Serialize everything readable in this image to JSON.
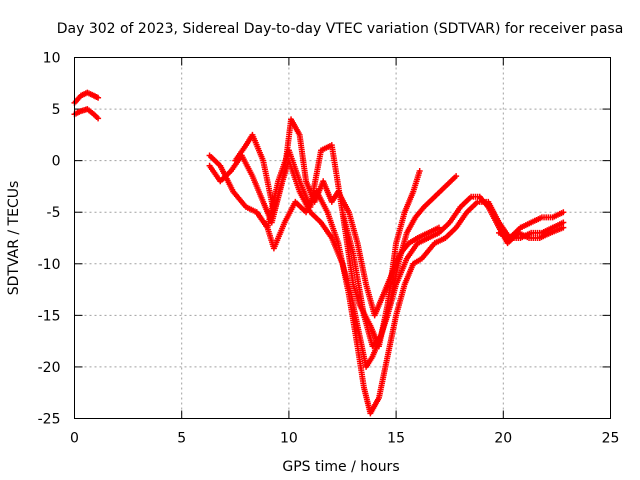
{
  "chart_data": {
    "type": "scatter",
    "title": "Day 302 of 2023, Sidereal Day-to-day VTEC variation (SDTVAR) for receiver pasa",
    "xlabel": "GPS time / hours",
    "ylabel": "SDTVAR / TECUs",
    "xlim": [
      0,
      25
    ],
    "ylim": [
      -25,
      10
    ],
    "xticks": [
      0,
      5,
      10,
      15,
      20,
      25
    ],
    "yticks": [
      -25,
      -20,
      -15,
      -10,
      -5,
      0,
      5,
      10
    ],
    "grid": true,
    "marker": "+",
    "series_color": "#ff0000",
    "series": [
      {
        "x": [
          0.0,
          0.3,
          0.6,
          0.9,
          1.1
        ],
        "y": [
          5.6,
          6.3,
          6.6,
          6.3,
          6.1
        ]
      },
      {
        "x": [
          0.0,
          0.3,
          0.6,
          0.9,
          1.1
        ],
        "y": [
          4.5,
          4.8,
          5.0,
          4.5,
          4.1
        ]
      },
      {
        "x": [
          6.3,
          6.8,
          7.3,
          7.8,
          8.3,
          8.8,
          9.2,
          9.7,
          10.0,
          10.5,
          11.0,
          11.5,
          12.0,
          12.5,
          12.9,
          13.3,
          13.6,
          13.9,
          14.2,
          14.6,
          15.0,
          15.5,
          16.0,
          16.5,
          17.0,
          17.5,
          18.0,
          18.5,
          18.9,
          19.3,
          19.8,
          20.2,
          20.7,
          21.2,
          21.7,
          22.2,
          22.8
        ],
        "y": [
          -0.5,
          -2.0,
          -1.0,
          0.5,
          -1.5,
          -4.0,
          -6.0,
          -2.0,
          0.0,
          -3.0,
          -5.0,
          -6.0,
          -7.5,
          -10.0,
          -13.0,
          -17.0,
          -20.0,
          -19.0,
          -17.5,
          -15.0,
          -12.0,
          -9.5,
          -8.0,
          -7.5,
          -7.0,
          -6.0,
          -4.5,
          -3.5,
          -3.5,
          -4.5,
          -6.5,
          -8.0,
          -7.0,
          -7.5,
          -7.5,
          -7.0,
          -6.5
        ]
      },
      {
        "x": [
          6.3,
          6.8,
          7.4,
          8.0,
          8.5,
          9.0,
          9.3,
          9.8,
          10.3,
          10.8,
          11.3,
          11.8,
          12.3,
          12.8,
          13.2,
          13.5,
          13.8,
          14.2,
          14.6,
          15.0,
          15.4,
          15.8,
          16.2,
          16.8,
          17.3,
          17.8,
          18.3,
          18.8,
          19.3,
          19.8,
          20.3,
          20.8,
          21.3,
          21.8,
          22.3,
          22.8
        ],
        "y": [
          0.5,
          -0.5,
          -3.0,
          -4.5,
          -5.0,
          -6.5,
          -8.5,
          -6.0,
          -4.0,
          -5.0,
          -3.0,
          -5.0,
          -8.0,
          -13.0,
          -18.0,
          -22.0,
          -24.5,
          -23.0,
          -19.0,
          -15.0,
          -12.0,
          -10.0,
          -9.5,
          -8.0,
          -7.5,
          -6.5,
          -5.0,
          -4.0,
          -4.0,
          -6.0,
          -7.5,
          -7.5,
          -7.0,
          -7.0,
          -6.5,
          -6.0
        ]
      },
      {
        "x": [
          7.5,
          8.0,
          8.3,
          8.8,
          9.3,
          9.8,
          10.1,
          10.5,
          10.8,
          11.2,
          11.6,
          12.0,
          12.3,
          12.8,
          13.2,
          13.6,
          14.0,
          14.4,
          14.8,
          15.2,
          15.6,
          16.0,
          16.5,
          17.0
        ],
        "y": [
          0.0,
          1.5,
          2.5,
          0.0,
          -5.0,
          -1.0,
          4.0,
          2.5,
          -2.0,
          -4.0,
          -2.0,
          -4.0,
          -3.0,
          -5.0,
          -8.0,
          -12.0,
          -15.0,
          -13.0,
          -11.0,
          -9.0,
          -8.0,
          -7.5,
          -7.0,
          -6.5
        ]
      },
      {
        "x": [
          8.5,
          9.0,
          9.5,
          10.0,
          10.5,
          11.0,
          11.5,
          12.0,
          12.5,
          13.0,
          13.3,
          13.8,
          14.2,
          14.6,
          15.0,
          15.4,
          15.8,
          16.1
        ],
        "y": [
          -5.0,
          -6.5,
          -2.0,
          1.0,
          -2.0,
          -4.5,
          1.0,
          1.5,
          -5.0,
          -12.0,
          -14.0,
          -16.0,
          -18.0,
          -14.0,
          -8.0,
          -5.0,
          -3.0,
          -1.0
        ]
      },
      {
        "x": [
          12.5,
          13.0,
          13.5,
          13.9,
          14.3,
          14.7,
          15.1,
          15.5,
          15.9,
          16.3,
          16.8,
          17.3,
          17.8
        ],
        "y": [
          -5.0,
          -9.0,
          -15.0,
          -18.0,
          -17.0,
          -14.0,
          -10.0,
          -7.0,
          -5.5,
          -4.5,
          -3.5,
          -2.5,
          -1.5
        ]
      },
      {
        "x": [
          19.8,
          20.3,
          20.8,
          21.3,
          21.8,
          22.3,
          22.8
        ],
        "y": [
          -7.0,
          -7.5,
          -6.5,
          -6.0,
          -5.5,
          -5.5,
          -5.0
        ]
      }
    ]
  }
}
